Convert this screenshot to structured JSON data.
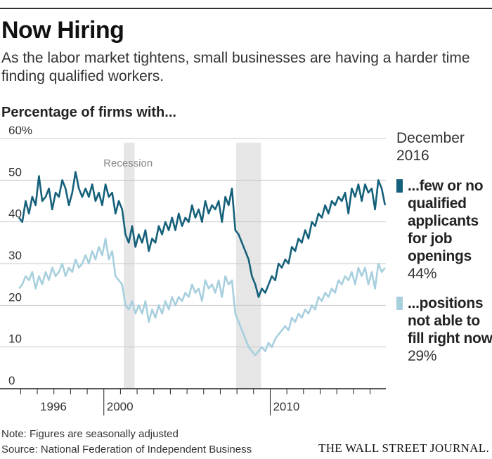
{
  "header": {
    "title": "Now Hiring",
    "subtitle": "As the labor market tightens, small businesses are having a harder time finding qualified workers.",
    "chart_heading": "Percentage of firms with..."
  },
  "legend": {
    "date_label": "December 2016",
    "items": [
      {
        "label": "...few or no qualified applicants for job openings",
        "value": "44%",
        "color": "#15607a"
      },
      {
        "label": "...positions not able to fill right now",
        "value": "29%",
        "color": "#a7cfde"
      }
    ]
  },
  "footer": {
    "note": "Note: Figures are seasonally adjusted",
    "source": "Source: National Federation of Independent Business",
    "brand": "THE WALL STREET JOURNAL."
  },
  "chart_data": {
    "type": "line",
    "ylim": [
      0,
      60
    ],
    "y_ticks": [
      0,
      10,
      20,
      30,
      40,
      50,
      60
    ],
    "y_tick_labels": [
      "0",
      "10",
      "20",
      "30",
      "40",
      "50",
      "60%"
    ],
    "xlim": [
      1994.9,
      2016.95
    ],
    "x_ticks": [
      1996,
      2000,
      2010
    ],
    "x_tick_labels": [
      "1996",
      "2000",
      "2010"
    ],
    "grid": true,
    "recession_label": "Recession",
    "recessions": [
      [
        2001.2,
        2001.85
      ],
      [
        2007.95,
        2009.45
      ]
    ],
    "series": [
      {
        "name": "...few or no qualified applicants for job openings",
        "color": "#15607a",
        "x": [
          1994.9,
          1995.1,
          1995.3,
          1995.5,
          1995.7,
          1995.9,
          1996.1,
          1996.3,
          1996.5,
          1996.7,
          1996.9,
          1997.1,
          1997.3,
          1997.5,
          1997.7,
          1997.9,
          1998.1,
          1998.3,
          1998.5,
          1998.7,
          1998.9,
          1999.1,
          1999.3,
          1999.5,
          1999.7,
          1999.9,
          2000.1,
          2000.3,
          2000.5,
          2000.7,
          2000.9,
          2001.1,
          2001.3,
          2001.5,
          2001.7,
          2001.9,
          2002.1,
          2002.3,
          2002.5,
          2002.7,
          2002.9,
          2003.1,
          2003.3,
          2003.5,
          2003.7,
          2003.9,
          2004.1,
          2004.3,
          2004.5,
          2004.7,
          2004.9,
          2005.1,
          2005.3,
          2005.5,
          2005.7,
          2005.9,
          2006.1,
          2006.3,
          2006.5,
          2006.7,
          2006.9,
          2007.1,
          2007.3,
          2007.5,
          2007.7,
          2007.9,
          2008.1,
          2008.3,
          2008.5,
          2008.7,
          2008.9,
          2009.1,
          2009.3,
          2009.5,
          2009.7,
          2009.9,
          2010.1,
          2010.3,
          2010.5,
          2010.7,
          2010.9,
          2011.1,
          2011.3,
          2011.5,
          2011.7,
          2011.9,
          2012.1,
          2012.3,
          2012.5,
          2012.7,
          2012.9,
          2013.1,
          2013.3,
          2013.5,
          2013.7,
          2013.9,
          2014.1,
          2014.3,
          2014.5,
          2014.7,
          2014.9,
          2015.1,
          2015.3,
          2015.5,
          2015.7,
          2015.9,
          2016.1,
          2016.3,
          2016.5,
          2016.7,
          2016.9
        ],
        "values": [
          41,
          40,
          45,
          42,
          46,
          44,
          51,
          45,
          46,
          48,
          43,
          47,
          46,
          50,
          48,
          44,
          47,
          52,
          48,
          46,
          48,
          46,
          49,
          45,
          47,
          44,
          49,
          46,
          47,
          42,
          45,
          43,
          37,
          35,
          39,
          34,
          37,
          35,
          38,
          33,
          36,
          35,
          39,
          37,
          40,
          38,
          41,
          38,
          42,
          39,
          41,
          40,
          44,
          41,
          43,
          40,
          45,
          42,
          44,
          43,
          45,
          40,
          46,
          44,
          48,
          38,
          37,
          35,
          33,
          31,
          27,
          25,
          22,
          24,
          23,
          25,
          27,
          26,
          30,
          29,
          31,
          30,
          34,
          33,
          36,
          35,
          38,
          36,
          40,
          39,
          42,
          41,
          44,
          42,
          45,
          44,
          46,
          45,
          47,
          42,
          48,
          46,
          49,
          45,
          49,
          47,
          48,
          43,
          50,
          48,
          44
        ]
      },
      {
        "name": "...positions not able to fill right now",
        "color": "#a7cfde",
        "x": [
          1994.9,
          1995.1,
          1995.3,
          1995.5,
          1995.7,
          1995.9,
          1996.1,
          1996.3,
          1996.5,
          1996.7,
          1996.9,
          1997.1,
          1997.3,
          1997.5,
          1997.7,
          1997.9,
          1998.1,
          1998.3,
          1998.5,
          1998.7,
          1998.9,
          1999.1,
          1999.3,
          1999.5,
          1999.7,
          1999.9,
          2000.1,
          2000.3,
          2000.5,
          2000.7,
          2000.9,
          2001.1,
          2001.3,
          2001.5,
          2001.7,
          2001.9,
          2002.1,
          2002.3,
          2002.5,
          2002.7,
          2002.9,
          2003.1,
          2003.3,
          2003.5,
          2003.7,
          2003.9,
          2004.1,
          2004.3,
          2004.5,
          2004.7,
          2004.9,
          2005.1,
          2005.3,
          2005.5,
          2005.7,
          2005.9,
          2006.1,
          2006.3,
          2006.5,
          2006.7,
          2006.9,
          2007.1,
          2007.3,
          2007.5,
          2007.7,
          2007.9,
          2008.1,
          2008.3,
          2008.5,
          2008.7,
          2008.9,
          2009.1,
          2009.3,
          2009.5,
          2009.7,
          2009.9,
          2010.1,
          2010.3,
          2010.5,
          2010.7,
          2010.9,
          2011.1,
          2011.3,
          2011.5,
          2011.7,
          2011.9,
          2012.1,
          2012.3,
          2012.5,
          2012.7,
          2012.9,
          2013.1,
          2013.3,
          2013.5,
          2013.7,
          2013.9,
          2014.1,
          2014.3,
          2014.5,
          2014.7,
          2014.9,
          2015.1,
          2015.3,
          2015.5,
          2015.7,
          2015.9,
          2016.1,
          2016.3,
          2016.5,
          2016.7,
          2016.9
        ],
        "values": [
          24,
          25,
          27,
          26,
          28,
          24,
          27,
          25,
          28,
          26,
          29,
          27,
          28,
          30,
          27,
          29,
          28,
          31,
          29,
          30,
          32,
          30,
          33,
          31,
          34,
          32,
          36,
          31,
          33,
          27,
          26,
          25,
          20,
          19,
          21,
          18,
          20,
          18,
          21,
          16,
          19,
          17,
          20,
          18,
          21,
          19,
          22,
          20,
          22,
          21,
          23,
          22,
          25,
          23,
          24,
          21,
          26,
          24,
          25,
          23,
          26,
          22,
          27,
          25,
          26,
          18,
          16,
          14,
          12,
          10,
          9,
          8,
          9,
          10,
          9,
          11,
          10,
          12,
          13,
          14,
          15,
          14,
          17,
          16,
          18,
          17,
          19,
          18,
          20,
          19,
          22,
          21,
          23,
          22,
          24,
          23,
          26,
          25,
          27,
          26,
          28,
          25,
          29,
          27,
          29,
          25,
          28,
          24,
          30,
          28,
          29
        ]
      }
    ]
  }
}
